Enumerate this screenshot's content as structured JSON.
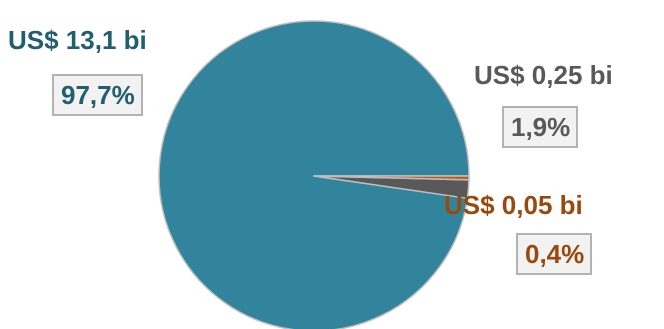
{
  "chart_data": {
    "type": "pie",
    "title": "",
    "start_angle_deg": 0,
    "direction": "counterclockwise",
    "slices": [
      {
        "amount_label": "US$ 13,1 bi",
        "percent_label": "97,7%",
        "value": 97.7,
        "color": "#31849b",
        "label_color": "#215f70"
      },
      {
        "amount_label": "US$ 0,25 bi",
        "percent_label": "1,9%",
        "value": 1.9,
        "color": "#595959",
        "label_color": "#595959"
      },
      {
        "amount_label": "US$ 0,05 bi",
        "percent_label": "0,4%",
        "value": 0.4,
        "color": "#c55a11",
        "label_color": "#99490d"
      }
    ],
    "slice_border_color": "#bfbfbf",
    "legend": "none"
  }
}
